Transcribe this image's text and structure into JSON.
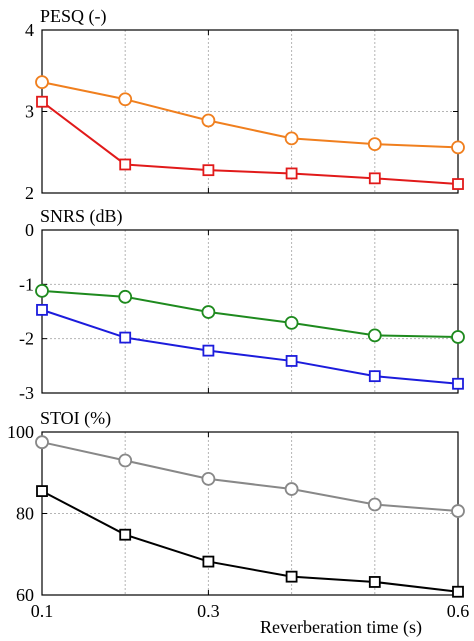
{
  "chart_data": [
    {
      "type": "line",
      "title": "PESQ (-)",
      "x": [
        0.1,
        0.2,
        0.3,
        0.4,
        0.5,
        0.6
      ],
      "xlim": [
        0.1,
        0.6
      ],
      "xticks": [
        0.1,
        0.3,
        0.6
      ],
      "xgrid": [
        0.1,
        0.2,
        0.3,
        0.4,
        0.5,
        0.6
      ],
      "ylim": [
        2,
        4
      ],
      "yticks": [
        2,
        3,
        4
      ],
      "ytick_labels": [
        "2",
        "3",
        "4"
      ],
      "grid": true,
      "series": [
        {
          "color": "#f07f1e",
          "marker": "circle",
          "values": [
            3.36,
            3.15,
            2.89,
            2.67,
            2.6,
            2.56
          ]
        },
        {
          "color": "#e11a1a",
          "marker": "square",
          "values": [
            3.12,
            2.35,
            2.28,
            2.24,
            2.18,
            2.11
          ]
        }
      ]
    },
    {
      "type": "line",
      "title": "SNRS (dB)",
      "x": [
        0.1,
        0.2,
        0.3,
        0.4,
        0.5,
        0.6
      ],
      "xlim": [
        0.1,
        0.6
      ],
      "xticks": [
        0.1,
        0.3,
        0.6
      ],
      "xgrid": [
        0.1,
        0.2,
        0.3,
        0.4,
        0.5,
        0.6
      ],
      "ylim": [
        -3,
        0
      ],
      "yticks": [
        -3,
        -2,
        -1,
        0
      ],
      "ytick_labels": [
        "-3",
        "-2",
        "-1",
        "0"
      ],
      "grid": true,
      "series": [
        {
          "color": "#1e8a1e",
          "marker": "circle",
          "values": [
            -1.12,
            -1.23,
            -1.51,
            -1.71,
            -1.94,
            -1.97
          ]
        },
        {
          "color": "#1c1cdc",
          "marker": "square",
          "values": [
            -1.47,
            -1.98,
            -2.22,
            -2.41,
            -2.69,
            -2.83
          ]
        }
      ]
    },
    {
      "type": "line",
      "title": "STOI (%)",
      "x": [
        0.1,
        0.2,
        0.3,
        0.4,
        0.5,
        0.6
      ],
      "xlim": [
        0.1,
        0.6
      ],
      "xticks": [
        0.1,
        0.3,
        0.6
      ],
      "xtick_labels": [
        "0.1",
        "0.3",
        "0.6"
      ],
      "xgrid": [
        0.1,
        0.2,
        0.3,
        0.4,
        0.5,
        0.6
      ],
      "xlabel": "Reverberation time (s)",
      "ylim": [
        60,
        100
      ],
      "yticks": [
        60,
        80,
        100
      ],
      "ytick_labels": [
        "60",
        "80",
        "100"
      ],
      "grid": true,
      "series": [
        {
          "color": "#888888",
          "marker": "circle",
          "values": [
            97.5,
            93.0,
            88.5,
            86.0,
            82.2,
            80.6
          ]
        },
        {
          "color": "#000000",
          "marker": "square",
          "values": [
            85.5,
            74.8,
            68.2,
            64.5,
            63.2,
            60.8
          ]
        }
      ]
    }
  ]
}
